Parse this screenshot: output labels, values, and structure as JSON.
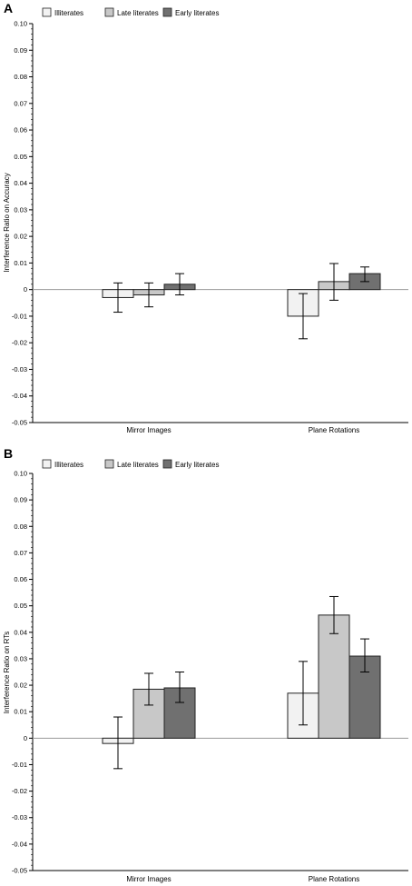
{
  "colors": {
    "Illiterates": "#f2f2f2",
    "Late literates": "#c8c8c8",
    "Early literates": "#707070",
    "axis": "#000000",
    "zero_line": "#999999"
  },
  "chart_data": [
    {
      "panel_label": "A",
      "type": "bar",
      "ylabel": "Interference Ratio on Accuracy",
      "ylim": [
        -0.05,
        0.1
      ],
      "yticks": [
        0.1,
        0.09,
        0.08,
        0.07,
        0.06,
        0.05,
        0.04,
        0.03,
        0.02,
        0.01,
        0,
        -0.01,
        -0.02,
        -0.03,
        -0.04,
        -0.05
      ],
      "ytick_labels": [
        "0.10",
        "0.09",
        "0.08",
        "0.07",
        "0.06",
        "0.05",
        "0.04",
        "0.03",
        "0.02",
        "0.01",
        "0",
        "-0.01",
        "-0.02",
        "-0.03",
        "-0.04",
        "-0.05"
      ],
      "categories": [
        "Mirror Images",
        "Plane Rotations"
      ],
      "legend_position": "top-left",
      "grid": false,
      "series": [
        {
          "name": "Illiterates",
          "values": [
            -0.003,
            -0.01
          ],
          "err_low": [
            -0.0085,
            -0.0185
          ],
          "err_high": [
            0.0025,
            -0.0015
          ]
        },
        {
          "name": "Late literates",
          "values": [
            -0.002,
            0.003
          ],
          "err_low": [
            -0.0065,
            -0.004
          ],
          "err_high": [
            0.0025,
            0.0098
          ]
        },
        {
          "name": "Early literates",
          "values": [
            0.002,
            0.006
          ],
          "err_low": [
            -0.002,
            0.003
          ],
          "err_high": [
            0.006,
            0.0085
          ]
        }
      ]
    },
    {
      "panel_label": "B",
      "type": "bar",
      "ylabel": "Interference Ratio on RTs",
      "ylim": [
        -0.05,
        0.1
      ],
      "yticks": [
        0.1,
        0.09,
        0.08,
        0.07,
        0.06,
        0.05,
        0.04,
        0.03,
        0.02,
        0.01,
        0,
        -0.01,
        -0.02,
        -0.03,
        -0.04,
        -0.05
      ],
      "ytick_labels": [
        "0.10",
        "0.09",
        "0.08",
        "0.07",
        "0.06",
        "0.05",
        "0.04",
        "0.03",
        "0.02",
        "0.01",
        "0",
        "-0.01",
        "-0.02",
        "-0.03",
        "-0.04",
        "-0.05"
      ],
      "categories": [
        "Mirror Images",
        "Plane Rotations"
      ],
      "legend_position": "top-left",
      "grid": false,
      "series": [
        {
          "name": "Illiterates",
          "values": [
            -0.002,
            0.017
          ],
          "err_low": [
            -0.0115,
            0.005
          ],
          "err_high": [
            0.008,
            0.029
          ]
        },
        {
          "name": "Late literates",
          "values": [
            0.0185,
            0.0465
          ],
          "err_low": [
            0.0125,
            0.0395
          ],
          "err_high": [
            0.0245,
            0.0535
          ]
        },
        {
          "name": "Early literates",
          "values": [
            0.019,
            0.031
          ],
          "err_low": [
            0.0135,
            0.025
          ],
          "err_high": [
            0.025,
            0.0375
          ]
        }
      ]
    }
  ]
}
